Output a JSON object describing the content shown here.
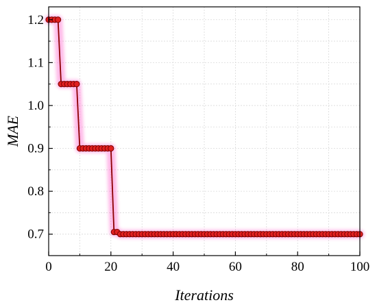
{
  "chart_data": {
    "type": "line",
    "title": "",
    "xlabel": "Iterations",
    "ylabel": "MAE",
    "xlim": [
      0,
      100
    ],
    "ylim": [
      0.65,
      1.23
    ],
    "xticks": [
      0,
      20,
      40,
      60,
      80,
      100
    ],
    "yticks": [
      0.7,
      0.8,
      0.9,
      1.0,
      1.1,
      1.2
    ],
    "xtick_labels": [
      "0",
      "20",
      "40",
      "60",
      "80",
      "100"
    ],
    "ytick_labels": [
      "0.7",
      "0.8",
      "0.9",
      "1.0",
      "1.1",
      "1.2"
    ],
    "grid": true,
    "legend": "none",
    "series": [
      {
        "x": [
          0,
          1,
          2,
          3,
          4,
          5,
          6,
          7,
          8,
          9,
          10,
          11,
          12,
          13,
          14,
          15,
          16,
          17,
          18,
          19,
          20,
          21,
          22,
          23,
          24,
          25,
          26,
          27,
          28,
          29,
          30,
          31,
          32,
          33,
          34,
          35,
          36,
          37,
          38,
          39,
          40,
          41,
          42,
          43,
          44,
          45,
          46,
          47,
          48,
          49,
          50,
          51,
          52,
          53,
          54,
          55,
          56,
          57,
          58,
          59,
          60,
          61,
          62,
          63,
          64,
          65,
          66,
          67,
          68,
          69,
          70,
          71,
          72,
          73,
          74,
          75,
          76,
          77,
          78,
          79,
          80,
          81,
          82,
          83,
          84,
          85,
          86,
          87,
          88,
          89,
          90,
          91,
          92,
          93,
          94,
          95,
          96,
          97,
          98,
          99,
          100
        ],
        "values": [
          1.2,
          1.2,
          1.2,
          1.2,
          1.05,
          1.05,
          1.05,
          1.05,
          1.05,
          1.05,
          0.9,
          0.9,
          0.9,
          0.9,
          0.9,
          0.9,
          0.9,
          0.9,
          0.9,
          0.9,
          0.9,
          0.705,
          0.705,
          0.7,
          0.7,
          0.7,
          0.7,
          0.7,
          0.7,
          0.7,
          0.7,
          0.7,
          0.7,
          0.7,
          0.7,
          0.7,
          0.7,
          0.7,
          0.7,
          0.7,
          0.7,
          0.7,
          0.7,
          0.7,
          0.7,
          0.7,
          0.7,
          0.7,
          0.7,
          0.7,
          0.7,
          0.7,
          0.7,
          0.7,
          0.7,
          0.7,
          0.7,
          0.7,
          0.7,
          0.7,
          0.7,
          0.7,
          0.7,
          0.7,
          0.7,
          0.7,
          0.7,
          0.7,
          0.7,
          0.7,
          0.7,
          0.7,
          0.7,
          0.7,
          0.7,
          0.7,
          0.7,
          0.7,
          0.7,
          0.7,
          0.7,
          0.7,
          0.7,
          0.7,
          0.7,
          0.7,
          0.7,
          0.7,
          0.7,
          0.7,
          0.7,
          0.7,
          0.7,
          0.7,
          0.7,
          0.7,
          0.7,
          0.7,
          0.7,
          0.7,
          0.7
        ],
        "line_color": "#8b0000",
        "marker_color": "#e02020",
        "marker_edge_color": "#7a0000",
        "glow_color": "#ff66cc"
      }
    ]
  }
}
